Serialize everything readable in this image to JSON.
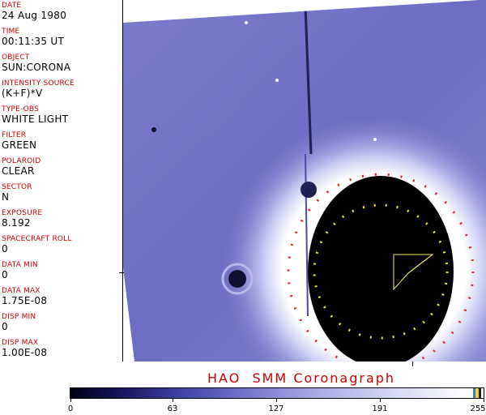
{
  "metadata": [
    {
      "label": "DATE",
      "value": "24 Aug 1980"
    },
    {
      "label": "TIME",
      "value": "00:11:35 UT"
    },
    {
      "label": "OBJECT",
      "value": "SUN:CORONA"
    },
    {
      "label": "INTENSITY SOURCE",
      "value": "(K+F)*V"
    },
    {
      "label": "TYPE-OBS",
      "value": "WHITE LIGHT"
    },
    {
      "label": "FILTER",
      "value": "GREEN"
    },
    {
      "label": "POLAROID",
      "value": "CLEAR"
    },
    {
      "label": "SECTOR",
      "value": "N"
    },
    {
      "label": "EXPOSURE",
      "value": "8.192"
    },
    {
      "label": "SPACECRAFT ROLL",
      "value": "0"
    },
    {
      "label": "DATA MIN",
      "value": "0"
    },
    {
      "label": "DATA MAX",
      "value": "1.75E-08"
    },
    {
      "label": "DISP MIN",
      "value": "0"
    },
    {
      "label": "DISP MAX",
      "value": "1.00E-08"
    }
  ],
  "title": "HAO  SMM Coronagraph",
  "colorbar": {
    "labels": [
      "0",
      "63",
      "127",
      "191",
      "255"
    ],
    "min": 0,
    "max": 255
  },
  "colors": {
    "label_red": "#cc0000",
    "corona_blue": "#6668c0",
    "occulter": "#000000"
  }
}
